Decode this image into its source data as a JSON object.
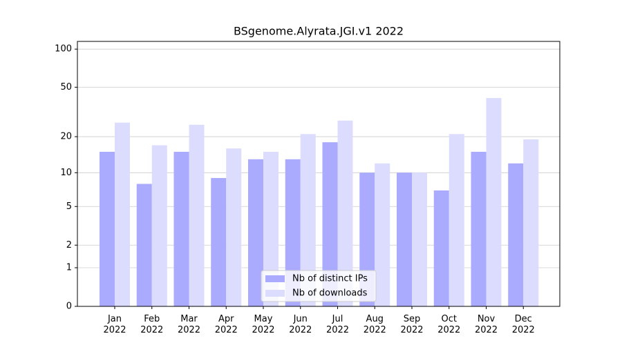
{
  "chart_data": {
    "type": "bar",
    "title": "BSgenome.Alyrata.JGI.v1 2022",
    "categories": [
      "Jan 2022",
      "Feb 2022",
      "Mar 2022",
      "Apr 2022",
      "May 2022",
      "Jun 2022",
      "Jul 2022",
      "Aug 2022",
      "Sep 2022",
      "Oct 2022",
      "Nov 2022",
      "Dec 2022"
    ],
    "series": [
      {
        "name": "Nb of distinct IPs",
        "color": "#aaaaff",
        "values": [
          15,
          8,
          15,
          9,
          13,
          13,
          18,
          10,
          10,
          7,
          15,
          12
        ]
      },
      {
        "name": "Nb of downloads",
        "color": "#dcdcff",
        "values": [
          26,
          17,
          25,
          16,
          15,
          21,
          27,
          12,
          10,
          21,
          41,
          19
        ]
      }
    ],
    "yscale": "log1p",
    "ylim": [
      0,
      115
    ],
    "yticks": [
      0,
      1,
      2,
      5,
      10,
      20,
      50,
      100
    ],
    "grid": true,
    "legend": "lower center"
  }
}
